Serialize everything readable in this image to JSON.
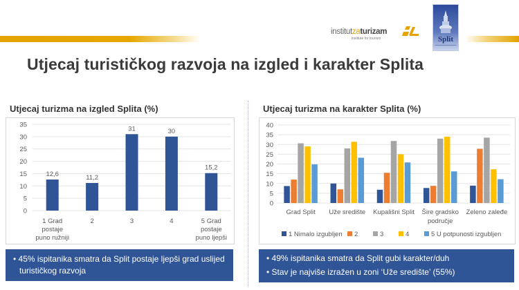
{
  "header": {
    "institute_logo": {
      "main_a": "institut",
      "main_b": "za",
      "main_c": "turizam",
      "sub": "institute for tourism"
    },
    "city_logo": {
      "word": "Split"
    },
    "colors": {
      "band": "#e3a300",
      "accent_blue": "#2f5597"
    }
  },
  "title": "Utjecaj turističkog razvoja na izgled i karakter Splita",
  "left": {
    "chart_title": "Utjecaj turizma na izgled Splita (%)",
    "note_items": [
      "45% ispitanika smatra da Split postaje ljepši grad uslijed turističkog razvoja"
    ]
  },
  "right": {
    "chart_title": "Utjecaj turizma na karakter Splita (%)",
    "note_items": [
      "49% ispitanika smatra da Split gubi karakter/duh",
      "Stav je najviše izražen u zoni ‘Uže središte’ (55%)"
    ]
  },
  "chart_data": [
    {
      "type": "bar",
      "title": "Utjecaj turizma na izgled Splita (%)",
      "categories": [
        [
          "1 Grad",
          "postaje",
          "puno ružniji"
        ],
        [
          "2"
        ],
        [
          "3"
        ],
        [
          "4"
        ],
        [
          "5 Grad",
          "postaje",
          "puno ljepši"
        ]
      ],
      "values": [
        12.6,
        11.2,
        31,
        30,
        15.2
      ],
      "data_labels": [
        "12,6",
        "11,2",
        "31",
        "30",
        "15,2"
      ],
      "color": "#2f5597",
      "xlabel": "",
      "ylabel": "",
      "ylim": [
        0,
        35
      ],
      "yticks": [
        0,
        5,
        10,
        15,
        20,
        25,
        30,
        35
      ],
      "grid": true,
      "legend": null
    },
    {
      "type": "bar",
      "title": "Utjecaj turizma na karakter Splita (%)",
      "categories": [
        [
          "Grad Split"
        ],
        [
          "Uže središte"
        ],
        [
          "Kupališni Split"
        ],
        [
          "Šire gradsko",
          "područje"
        ],
        [
          "Zeleno zaleđe"
        ]
      ],
      "series": [
        {
          "name": "1 Nimalo izgubljen",
          "color": "#2f5597",
          "values": [
            8.7,
            10.0,
            6.8,
            7.7,
            8.9
          ]
        },
        {
          "name": "2",
          "color": "#ed7d31",
          "values": [
            12.0,
            7.0,
            15.5,
            8.8,
            27.8
          ]
        },
        {
          "name": "3",
          "color": "#a5a5a5",
          "values": [
            30.6,
            28.0,
            31.8,
            33.0,
            33.5
          ]
        },
        {
          "name": "4",
          "color": "#ffc000",
          "values": [
            29.0,
            31.4,
            25.0,
            34.0,
            17.3
          ]
        },
        {
          "name": "5 U potpunosti izgubljen",
          "color": "#5b9bd5",
          "values": [
            19.8,
            23.2,
            20.8,
            16.2,
            12.2
          ]
        }
      ],
      "xlabel": "",
      "ylabel": "",
      "ylim": [
        0,
        40
      ],
      "yticks": [
        0,
        5,
        10,
        15,
        20,
        25,
        30,
        35,
        40
      ],
      "grid": true,
      "legend_position": "bottom"
    }
  ]
}
